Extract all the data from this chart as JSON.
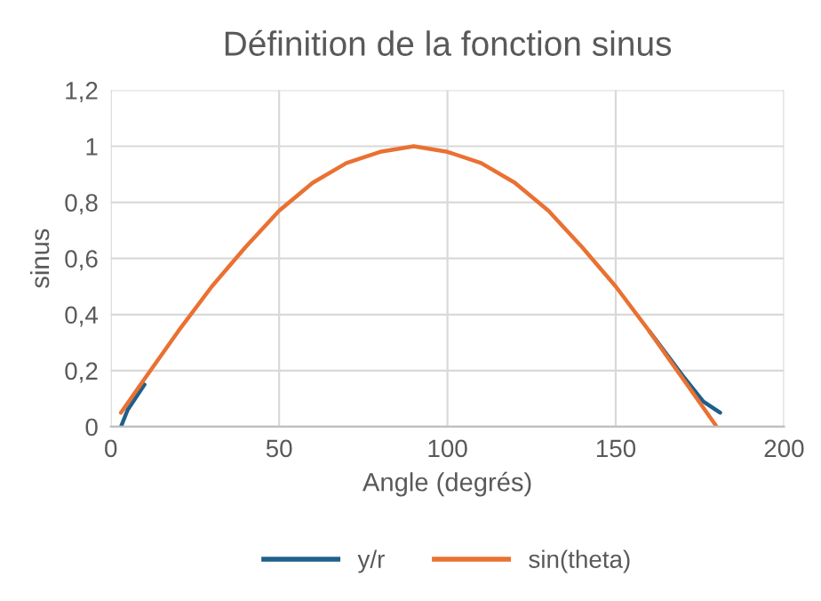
{
  "chart_data": {
    "type": "line",
    "title": "Définition de la fonction sinus",
    "xlabel": "Angle (degrés)",
    "ylabel": "sinus",
    "series": [
      {
        "name": "y/r",
        "color": "#1f5f8b",
        "x": [
          3,
          5,
          10,
          20,
          30,
          40,
          50,
          60,
          70,
          80,
          90,
          100,
          110,
          120,
          130,
          140,
          150,
          160,
          170,
          176,
          181
        ],
        "values": [
          0,
          0.06,
          0.15,
          null,
          null,
          null,
          null,
          null,
          null,
          null,
          null,
          null,
          null,
          null,
          null,
          null,
          null,
          0.34,
          0.18,
          0.09,
          0.05
        ]
      },
      {
        "name": "sin(theta)",
        "color": "#e97132",
        "x": [
          3,
          10,
          20,
          30,
          40,
          50,
          60,
          70,
          80,
          90,
          100,
          110,
          120,
          130,
          140,
          150,
          160,
          170,
          180
        ],
        "values": [
          0.05,
          0.17,
          0.34,
          0.5,
          0.64,
          0.77,
          0.87,
          0.94,
          0.98,
          1,
          0.98,
          0.94,
          0.87,
          0.77,
          0.64,
          0.5,
          0.34,
          0.17,
          0
        ]
      }
    ],
    "xlim": [
      0,
      200
    ],
    "xticks": [
      0,
      50,
      100,
      150,
      200
    ],
    "ylim": [
      0,
      1.2
    ],
    "yticks": [
      0,
      {
        "value": 0.2,
        "label": "0,2"
      },
      {
        "value": 0.4,
        "label": "0,4"
      },
      {
        "value": 0.6,
        "label": "0,6"
      },
      {
        "value": 0.8,
        "label": "0,8"
      },
      1,
      {
        "value": 1.2,
        "label": "1,2"
      }
    ],
    "grid": true,
    "legend": "bottom",
    "marker": "none",
    "line_style": "solid"
  }
}
